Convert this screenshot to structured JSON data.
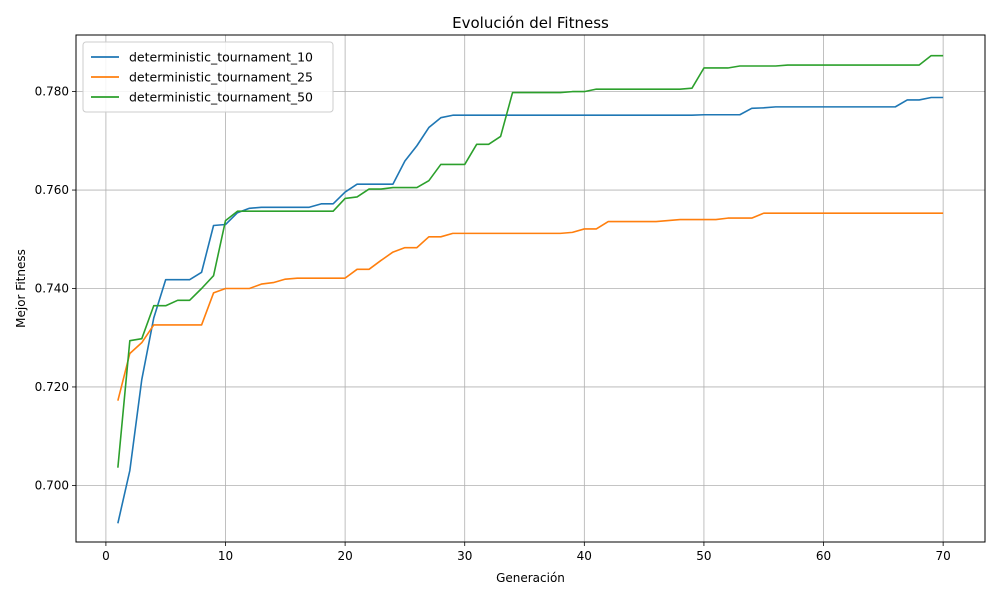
{
  "chart_data": {
    "type": "line",
    "title": "Evolución del Fitness",
    "xlabel": "Generación",
    "ylabel": "Mejor Fitness",
    "xlim": [
      -2.5,
      73.5
    ],
    "ylim": [
      0.6885,
      0.7915
    ],
    "xticks": [
      0,
      10,
      20,
      30,
      40,
      50,
      60,
      70
    ],
    "yticks": [
      0.7,
      0.72,
      0.74,
      0.76,
      0.78
    ],
    "ytick_labels": [
      "0.700",
      "0.720",
      "0.740",
      "0.760",
      "0.780"
    ],
    "grid": true,
    "legend_position": "top-left",
    "x": [
      1,
      2,
      3,
      4,
      5,
      6,
      7,
      8,
      9,
      10,
      11,
      12,
      13,
      14,
      15,
      16,
      17,
      18,
      19,
      20,
      21,
      22,
      23,
      24,
      25,
      26,
      27,
      28,
      29,
      30,
      31,
      32,
      33,
      34,
      35,
      36,
      37,
      38,
      39,
      40,
      41,
      42,
      43,
      44,
      45,
      46,
      47,
      48,
      49,
      50,
      51,
      52,
      53,
      54,
      55,
      56,
      57,
      58,
      59,
      60,
      61,
      62,
      63,
      64,
      65,
      66,
      67,
      68,
      69,
      70
    ],
    "series": [
      {
        "name": "deterministic_tournament_10",
        "color": "#1f77b4",
        "values": [
          0.6923,
          0.703,
          0.7215,
          0.734,
          0.7418,
          0.7418,
          0.7418,
          0.7433,
          0.7528,
          0.753,
          0.7554,
          0.7563,
          0.7565,
          0.7565,
          0.7565,
          0.7565,
          0.7565,
          0.7572,
          0.7572,
          0.7596,
          0.7612,
          0.7612,
          0.7612,
          0.7612,
          0.7659,
          0.769,
          0.7727,
          0.7747,
          0.7752,
          0.7752,
          0.7752,
          0.7752,
          0.7752,
          0.7752,
          0.7752,
          0.7752,
          0.7752,
          0.7752,
          0.7752,
          0.7752,
          0.7752,
          0.7752,
          0.7752,
          0.7752,
          0.7752,
          0.7752,
          0.7752,
          0.7752,
          0.7752,
          0.7753,
          0.7753,
          0.7753,
          0.7753,
          0.7766,
          0.7767,
          0.7769,
          0.7769,
          0.7769,
          0.7769,
          0.7769,
          0.7769,
          0.7769,
          0.7769,
          0.7769,
          0.7769,
          0.7769,
          0.7783,
          0.7783,
          0.7788,
          0.7788
        ]
      },
      {
        "name": "deterministic_tournament_25",
        "color": "#ff7f0e",
        "values": [
          0.7172,
          0.7268,
          0.729,
          0.7326,
          0.7326,
          0.7326,
          0.7326,
          0.7326,
          0.7391,
          0.74,
          0.74,
          0.74,
          0.7409,
          0.7412,
          0.7419,
          0.7421,
          0.7421,
          0.7421,
          0.7421,
          0.7421,
          0.7439,
          0.7439,
          0.7457,
          0.7474,
          0.7483,
          0.7483,
          0.7505,
          0.7505,
          0.7512,
          0.7512,
          0.7512,
          0.7512,
          0.7512,
          0.7512,
          0.7512,
          0.7512,
          0.7512,
          0.7512,
          0.7514,
          0.7521,
          0.7521,
          0.7536,
          0.7536,
          0.7536,
          0.7536,
          0.7536,
          0.7538,
          0.754,
          0.754,
          0.754,
          0.754,
          0.7543,
          0.7543,
          0.7543,
          0.7553,
          0.7553,
          0.7553,
          0.7553,
          0.7553,
          0.7553,
          0.7553,
          0.7553,
          0.7553,
          0.7553,
          0.7553,
          0.7553,
          0.7553,
          0.7553,
          0.7553,
          0.7553
        ]
      },
      {
        "name": "deterministic_tournament_50",
        "color": "#2ca02c",
        "values": [
          0.7036,
          0.7294,
          0.7298,
          0.7365,
          0.7365,
          0.7376,
          0.7376,
          0.74,
          0.7426,
          0.7538,
          0.7557,
          0.7557,
          0.7557,
          0.7557,
          0.7557,
          0.7557,
          0.7557,
          0.7557,
          0.7557,
          0.7583,
          0.7586,
          0.7602,
          0.7602,
          0.7605,
          0.7605,
          0.7605,
          0.7619,
          0.7652,
          0.7652,
          0.7652,
          0.7693,
          0.7693,
          0.7709,
          0.7798,
          0.7798,
          0.7798,
          0.7798,
          0.7798,
          0.78,
          0.78,
          0.7805,
          0.7805,
          0.7805,
          0.7805,
          0.7805,
          0.7805,
          0.7805,
          0.7805,
          0.7807,
          0.7848,
          0.7848,
          0.7848,
          0.7852,
          0.7852,
          0.7852,
          0.7852,
          0.7854,
          0.7854,
          0.7854,
          0.7854,
          0.7854,
          0.7854,
          0.7854,
          0.7854,
          0.7854,
          0.7854,
          0.7854,
          0.7854,
          0.7873,
          0.7873
        ]
      }
    ]
  }
}
